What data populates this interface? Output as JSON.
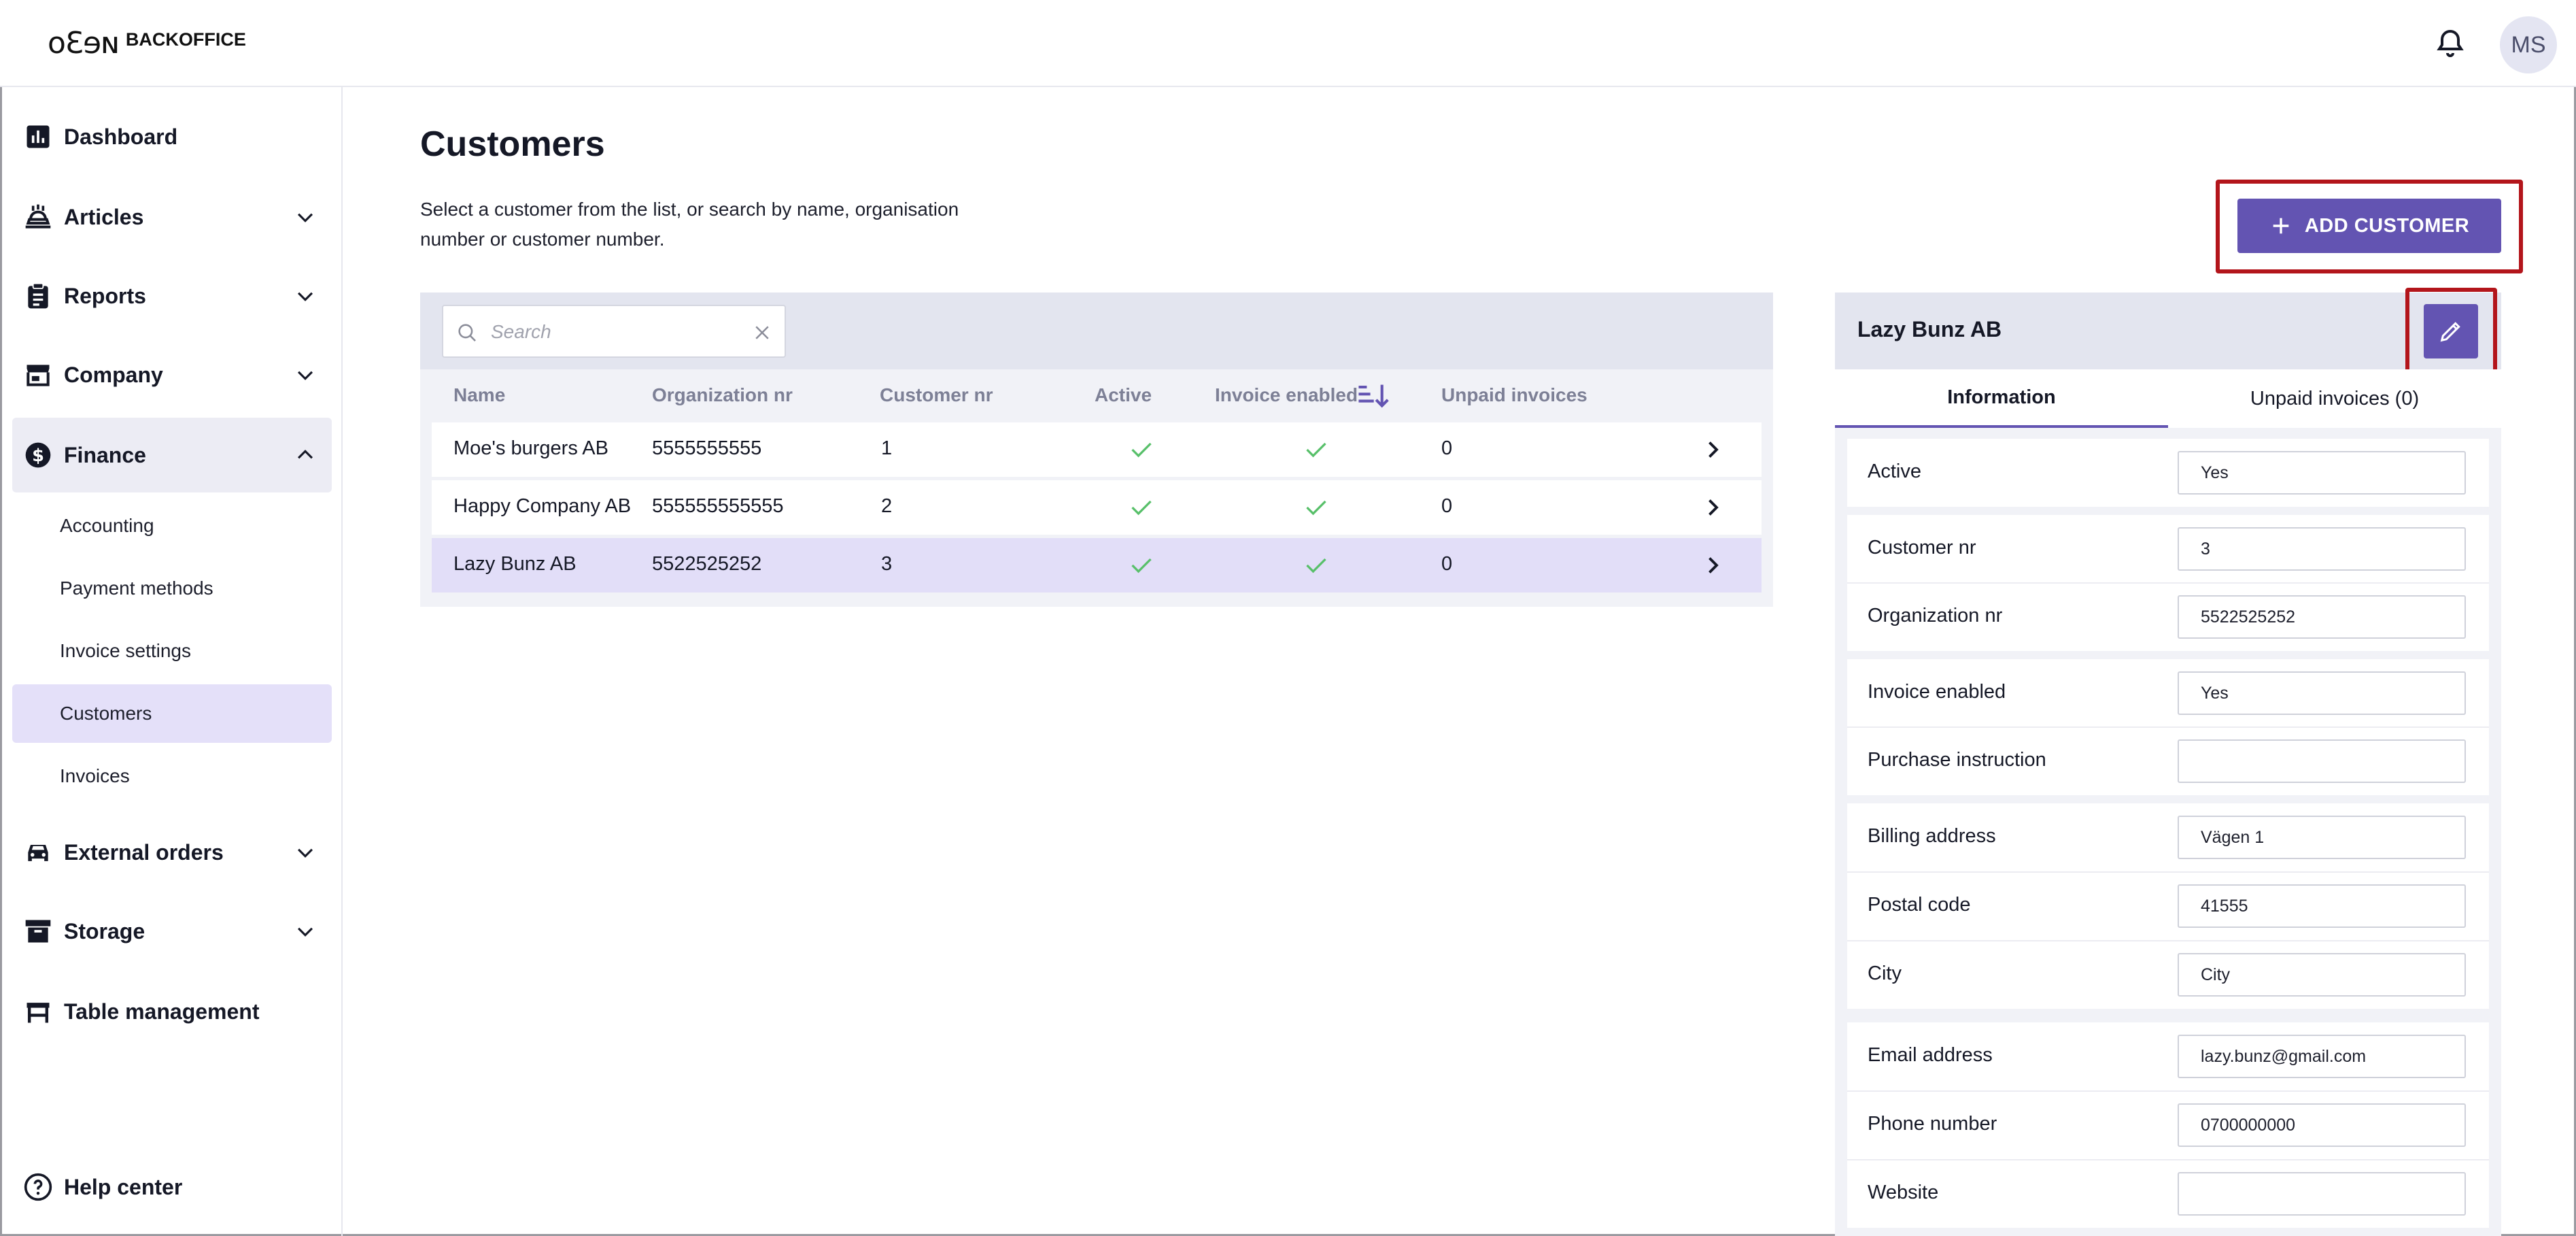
{
  "brand": {
    "logo_mark": "oƐɘɴ",
    "logo_text": "BACKOFFICE"
  },
  "user": {
    "initials": "MS"
  },
  "sidebar": {
    "items": [
      {
        "label": "Dashboard"
      },
      {
        "label": "Articles"
      },
      {
        "label": "Reports"
      },
      {
        "label": "Company"
      },
      {
        "label": "Finance"
      },
      {
        "label": "External orders"
      },
      {
        "label": "Storage"
      },
      {
        "label": "Table management"
      }
    ],
    "finance_sub": [
      {
        "label": "Accounting"
      },
      {
        "label": "Payment methods"
      },
      {
        "label": "Invoice settings"
      },
      {
        "label": "Customers"
      },
      {
        "label": "Invoices"
      }
    ],
    "help": "Help center"
  },
  "page": {
    "title": "Customers",
    "description": "Select a customer from the list, or search by name, organisation number or customer number.",
    "add_button": "ADD CUSTOMER"
  },
  "search": {
    "placeholder": "Search"
  },
  "table": {
    "columns": [
      "Name",
      "Organization nr",
      "Customer nr",
      "Active",
      "Invoice enabled",
      "Unpaid invoices"
    ],
    "rows": [
      {
        "name": "Moe's burgers AB",
        "org": "5555555555",
        "customer_nr": "1",
        "unpaid": "0"
      },
      {
        "name": "Happy Company AB",
        "org": "555555555555",
        "customer_nr": "2",
        "unpaid": "0"
      },
      {
        "name": "Lazy Bunz AB",
        "org": "5522525252",
        "customer_nr": "3",
        "unpaid": "0"
      }
    ]
  },
  "detail": {
    "title": "Lazy Bunz AB",
    "tabs": [
      "Information",
      "Unpaid invoices (0)"
    ],
    "fields": {
      "active": {
        "label": "Active",
        "value": "Yes"
      },
      "customer_nr": {
        "label": "Customer nr",
        "value": "3"
      },
      "org_nr": {
        "label": "Organization nr",
        "value": "5522525252"
      },
      "invoice_enabled": {
        "label": "Invoice enabled",
        "value": "Yes"
      },
      "purchase_instruction": {
        "label": "Purchase instruction",
        "value": ""
      },
      "billing_address": {
        "label": "Billing address",
        "value": "Vägen 1"
      },
      "postal_code": {
        "label": "Postal code",
        "value": "41555"
      },
      "city": {
        "label": "City",
        "value": "City"
      },
      "email": {
        "label": "Email address",
        "value": "lazy.bunz@gmail.com"
      },
      "phone": {
        "label": "Phone number",
        "value": "0700000000"
      },
      "website": {
        "label": "Website",
        "value": ""
      }
    }
  },
  "colors": {
    "accent": "#6354b2",
    "highlight": "#b3151b",
    "check": "#58c06a",
    "selected_row": "#e2def8"
  }
}
